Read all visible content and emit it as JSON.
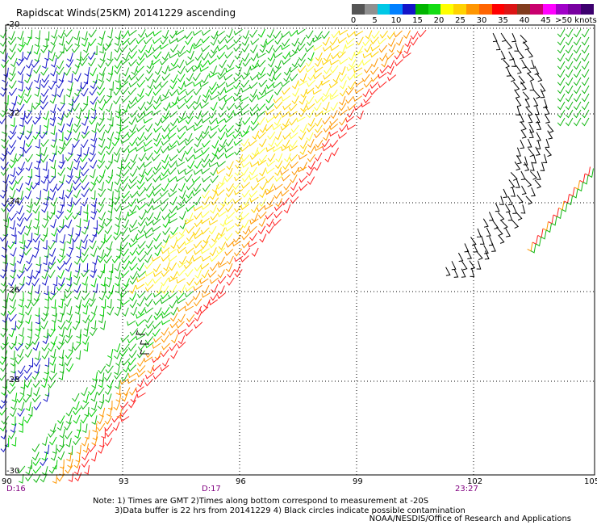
{
  "title": "Rapidscat Winds(25KM) 20141229 ascending",
  "legend": {
    "colors": [
      "#555555",
      "#909090",
      "#00c8e6",
      "#0080ff",
      "#1414c8",
      "#00b400",
      "#14dc14",
      "#ffff00",
      "#ffd200",
      "#ff9600",
      "#ff6400",
      "#ff0000",
      "#dc1414",
      "#823c1e",
      "#c8006e",
      "#ff00ff",
      "#a000c8",
      "#7800a0",
      "#3c006e"
    ],
    "ticks": [
      "0",
      "5",
      "10",
      "15",
      "20",
      "25",
      "30",
      "35",
      "40",
      "45",
      ">50 knots"
    ]
  },
  "lat_labels": [
    "-20",
    "-22",
    "-24",
    "-26",
    "-28",
    "-30"
  ],
  "lon_labels": [
    "90",
    "93",
    "96",
    "99",
    "102",
    "105"
  ],
  "time_labels": [
    "D:16",
    "D:17",
    "23:27"
  ],
  "notes": {
    "line1": "Note: 1) Times are GMT 2)Times along bottom correspond to measurement at -20S",
    "line2": "3)Data buffer is 22 hrs from 20141229 4) Black circles indicate possible contamination"
  },
  "credit": "NOAA/NESDIS/Office of Research and Applications"
}
